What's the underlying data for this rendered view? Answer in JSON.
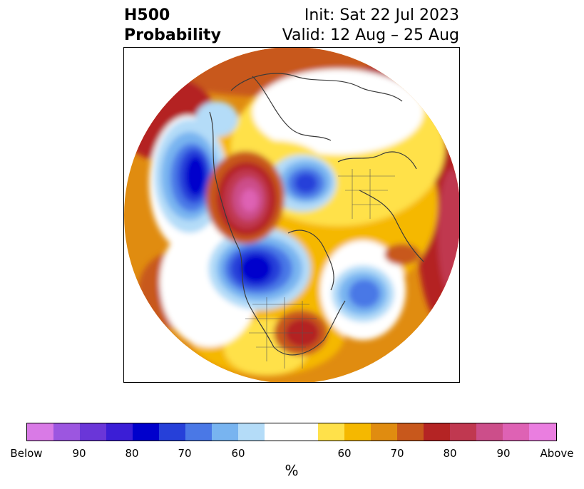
{
  "header": {
    "variable": "H500",
    "product": "Probability",
    "init": "Init: Sat 22 Jul 2023",
    "valid": "Valid: 12 Aug – 25 Aug"
  },
  "colorbar": {
    "unit": "%",
    "colors": [
      "#d97ae6",
      "#9c56e0",
      "#6a36d8",
      "#3b1ed6",
      "#0000cc",
      "#2640d9",
      "#4a78e6",
      "#78b4f0",
      "#b4dcf8",
      "#ffffff",
      "#ffffff",
      "#ffe14a",
      "#f5b800",
      "#e08c10",
      "#c8581c",
      "#b42424",
      "#c03850",
      "#cc4e8a",
      "#de62b4",
      "#ea7ee0"
    ],
    "tick_labels": [
      "Below",
      "90",
      "80",
      "70",
      "60",
      "60",
      "70",
      "80",
      "90",
      "Above"
    ]
  }
}
